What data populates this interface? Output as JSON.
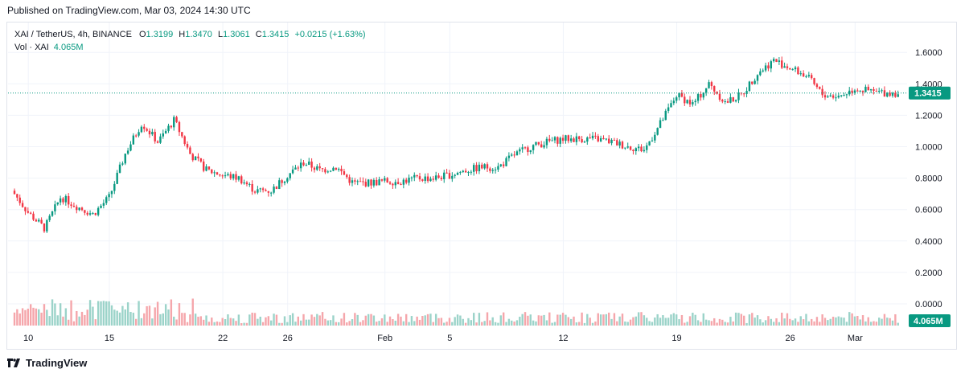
{
  "published": "Published on TradingView.com, Mar 03, 2024 14:30 UTC",
  "legend": {
    "symbol": "XAI / TetherUS, 4h, BINANCE",
    "o_label": "O",
    "o": "1.3199",
    "h_label": "H",
    "h": "1.3470",
    "l_label": "L",
    "l": "1.3061",
    "c_label": "C",
    "c": "1.3415",
    "change": "+0.0215 (+1.63%)",
    "vol_label": "Vol · XAI",
    "vol_value": "4.065M"
  },
  "footer": {
    "brand": "TradingView"
  },
  "colors": {
    "up": "#089981",
    "down": "#f23645",
    "up_vol": "#9bd3c9",
    "down_vol": "#f5a6ab",
    "price_label": "#089981"
  },
  "chart_data": {
    "type": "candlestick",
    "interval": "4h",
    "ylim": [
      0,
      1.7
    ],
    "y_ticks": [
      "1.6000",
      "1.4000",
      "1.2000",
      "1.0000",
      "0.8000",
      "0.6000",
      "0.4000",
      "0.2000",
      "0.0000"
    ],
    "x_ticks": [
      "10",
      "15",
      "22",
      "26",
      "Feb",
      "5",
      "12",
      "19",
      "26",
      "Mar"
    ],
    "last_price": "1.3415",
    "last_volume": "4.065M",
    "price_path": [
      [
        "2024-01-09",
        0.72
      ],
      [
        "2024-01-10",
        0.58
      ],
      [
        "2024-01-11",
        0.48
      ],
      [
        "2024-01-12",
        0.68
      ],
      [
        "2024-01-13",
        0.62
      ],
      [
        "2024-01-14",
        0.57
      ],
      [
        "2024-01-15",
        0.68
      ],
      [
        "2024-01-16",
        0.96
      ],
      [
        "2024-01-17",
        1.15
      ],
      [
        "2024-01-18",
        1.03
      ],
      [
        "2024-01-19",
        1.17
      ],
      [
        "2024-01-20",
        0.95
      ],
      [
        "2024-01-21",
        0.85
      ],
      [
        "2024-01-22",
        0.82
      ],
      [
        "2024-01-23",
        0.8
      ],
      [
        "2024-01-24",
        0.72
      ],
      [
        "2024-01-25",
        0.72
      ],
      [
        "2024-01-26",
        0.82
      ],
      [
        "2024-01-27",
        0.9
      ],
      [
        "2024-01-28",
        0.85
      ],
      [
        "2024-01-29",
        0.87
      ],
      [
        "2024-01-30",
        0.77
      ],
      [
        "2024-01-31",
        0.77
      ],
      [
        "2024-02-01",
        0.78
      ],
      [
        "2024-02-02",
        0.78
      ],
      [
        "2024-02-03",
        0.8
      ],
      [
        "2024-02-04",
        0.8
      ],
      [
        "2024-02-05",
        0.82
      ],
      [
        "2024-02-06",
        0.85
      ],
      [
        "2024-02-07",
        0.87
      ],
      [
        "2024-02-08",
        0.87
      ],
      [
        "2024-02-09",
        0.95
      ],
      [
        "2024-02-10",
        1.0
      ],
      [
        "2024-02-11",
        1.03
      ],
      [
        "2024-02-12",
        1.05
      ],
      [
        "2024-02-13",
        1.05
      ],
      [
        "2024-02-14",
        1.05
      ],
      [
        "2024-02-15",
        1.03
      ],
      [
        "2024-02-16",
        1.0
      ],
      [
        "2024-02-17",
        0.98
      ],
      [
        "2024-02-18",
        1.15
      ],
      [
        "2024-02-19",
        1.33
      ],
      [
        "2024-02-20",
        1.27
      ],
      [
        "2024-02-21",
        1.4
      ],
      [
        "2024-02-22",
        1.28
      ],
      [
        "2024-02-23",
        1.33
      ],
      [
        "2024-02-24",
        1.47
      ],
      [
        "2024-02-25",
        1.55
      ],
      [
        "2024-02-26",
        1.5
      ],
      [
        "2024-02-27",
        1.45
      ],
      [
        "2024-02-28",
        1.33
      ],
      [
        "2024-02-29",
        1.32
      ],
      [
        "2024-03-01",
        1.37
      ],
      [
        "2024-03-02",
        1.35
      ],
      [
        "2024-03-03",
        1.3415
      ]
    ]
  }
}
